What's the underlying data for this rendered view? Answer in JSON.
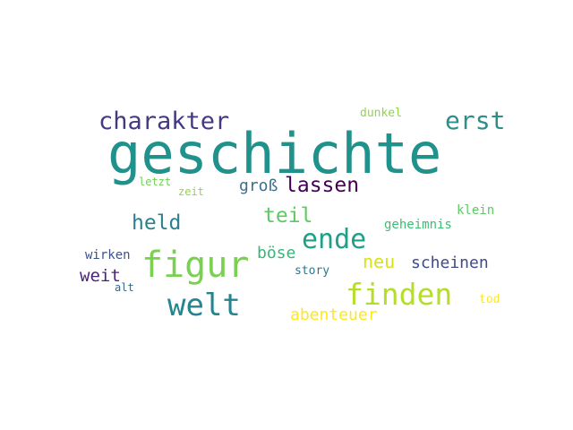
{
  "words": {
    "geschichte": {
      "text": "geschichte",
      "color": "#21918c"
    },
    "charakter": {
      "text": "charakter",
      "color": "#443983"
    },
    "erst": {
      "text": "erst",
      "color": "#2c8f8c"
    },
    "dunkel": {
      "text": "dunkel",
      "color": "#8fd744"
    },
    "letzt": {
      "text": "letzt",
      "color": "#73d056"
    },
    "zeit": {
      "text": "zeit",
      "color": "#8fd744"
    },
    "gross": {
      "text": "groß",
      "color": "#3b6f8e"
    },
    "lassen": {
      "text": "lassen",
      "color": "#440154"
    },
    "held": {
      "text": "held",
      "color": "#2c7f8e"
    },
    "teil": {
      "text": "teil",
      "color": "#5ec962"
    },
    "ende": {
      "text": "ende",
      "color": "#1fa088"
    },
    "geheimnis": {
      "text": "geheimnis",
      "color": "#3fbc73"
    },
    "klein": {
      "text": "klein",
      "color": "#5ec962"
    },
    "figur": {
      "text": "figur",
      "color": "#7ad151"
    },
    "boese": {
      "text": "böse",
      "color": "#35b779"
    },
    "neu": {
      "text": "neu",
      "color": "#d8e219"
    },
    "scheinen": {
      "text": "scheinen",
      "color": "#3e4c8a"
    },
    "wirken": {
      "text": "wirken",
      "color": "#3b528b"
    },
    "weit": {
      "text": "weit",
      "color": "#482475"
    },
    "alt": {
      "text": "alt",
      "color": "#31688e"
    },
    "story": {
      "text": "story",
      "color": "#2a788e"
    },
    "finden": {
      "text": "finden",
      "color": "#b5de2b"
    },
    "welt": {
      "text": "welt",
      "color": "#25848e"
    },
    "abenteuer": {
      "text": "abenteuer",
      "color": "#fde725"
    },
    "tod": {
      "text": "tod",
      "color": "#fde725"
    }
  }
}
